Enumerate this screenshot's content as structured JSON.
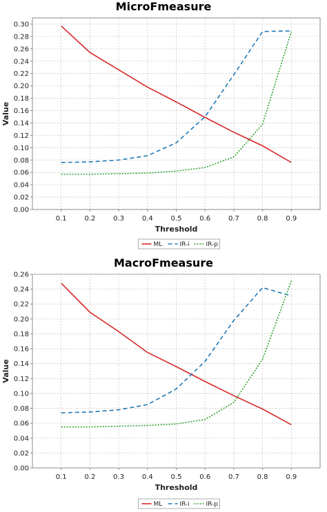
{
  "chart_data": [
    {
      "type": "line",
      "title": "MicroFmeasure",
      "xlabel": "Threshold",
      "ylabel": "Value",
      "x": [
        0.1,
        0.2,
        0.3,
        0.4,
        0.5,
        0.6,
        0.7,
        0.8,
        0.9
      ],
      "x_ticks": [
        "0.1",
        "0.2",
        "0.3",
        "0.4",
        "0.5",
        "0.6",
        "0.7",
        "0.8",
        "0.9"
      ],
      "xlim": [
        0.0,
        1.0
      ],
      "ylim": [
        0.0,
        0.31
      ],
      "y_ticks": [
        "0.00",
        "0.02",
        "0.04",
        "0.06",
        "0.08",
        "0.10",
        "0.12",
        "0.14",
        "0.16",
        "0.18",
        "0.20",
        "0.22",
        "0.24",
        "0.26",
        "0.28",
        "0.30"
      ],
      "grid": true,
      "legend_position": "bottom",
      "series": [
        {
          "name": "ML",
          "color": "#d62728",
          "dash": "solid",
          "values": [
            0.297,
            0.254,
            0.226,
            0.198,
            0.174,
            0.149,
            0.125,
            0.103,
            0.076
          ]
        },
        {
          "name": "IR-i",
          "color": "#1f77b4",
          "dash": "dashed",
          "values": [
            0.076,
            0.077,
            0.08,
            0.087,
            0.108,
            0.15,
            0.218,
            0.288,
            0.289
          ]
        },
        {
          "name": "IR-p",
          "color": "#2ca02c",
          "dash": "dotted",
          "values": [
            0.057,
            0.057,
            0.058,
            0.059,
            0.062,
            0.068,
            0.085,
            0.138,
            0.288
          ]
        }
      ]
    },
    {
      "type": "line",
      "title": "MacroFmeasure",
      "xlabel": "Threshold",
      "ylabel": "Value",
      "x": [
        0.1,
        0.2,
        0.3,
        0.4,
        0.5,
        0.6,
        0.7,
        0.8,
        0.9
      ],
      "x_ticks": [
        "0.1",
        "0.2",
        "0.3",
        "0.4",
        "0.5",
        "0.6",
        "0.7",
        "0.8",
        "0.9"
      ],
      "xlim": [
        0.0,
        1.0
      ],
      "ylim": [
        0.0,
        0.26
      ],
      "y_ticks": [
        "0.00",
        "0.02",
        "0.04",
        "0.06",
        "0.08",
        "0.10",
        "0.12",
        "0.14",
        "0.16",
        "0.18",
        "0.20",
        "0.22",
        "0.24",
        "0.26"
      ],
      "grid": true,
      "legend_position": "bottom",
      "series": [
        {
          "name": "ML",
          "color": "#d62728",
          "dash": "solid",
          "values": [
            0.248,
            0.209,
            0.183,
            0.155,
            0.136,
            0.116,
            0.097,
            0.079,
            0.058
          ]
        },
        {
          "name": "IR-i",
          "color": "#1f77b4",
          "dash": "dashed",
          "values": [
            0.074,
            0.075,
            0.078,
            0.085,
            0.106,
            0.143,
            0.198,
            0.242,
            0.231
          ]
        },
        {
          "name": "IR-p",
          "color": "#2ca02c",
          "dash": "dotted",
          "values": [
            0.055,
            0.055,
            0.056,
            0.057,
            0.059,
            0.065,
            0.088,
            0.146,
            0.251
          ]
        }
      ]
    }
  ]
}
